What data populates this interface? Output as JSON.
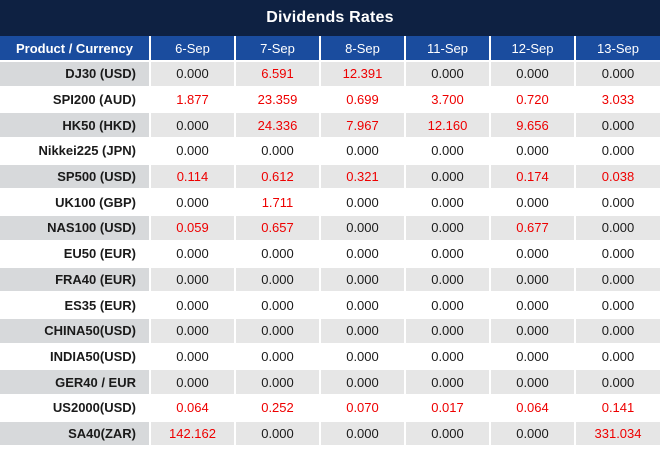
{
  "title": "Dividends Rates",
  "colors": {
    "title_bg": "#0E2142",
    "header_bg": "#1A4C9E",
    "stripe_grey": "#E6E6E6",
    "stripe_grey_first_col": "#D7D9DB",
    "value_black": "#1A1A1A",
    "value_red": "#EE0000"
  },
  "table": {
    "product_header": "Product / Currency",
    "date_headers": [
      "6-Sep",
      "7-Sep",
      "8-Sep",
      "11-Sep",
      "12-Sep",
      "13-Sep"
    ],
    "rows": [
      {
        "product": "DJ30 (USD)",
        "values": [
          "0.000",
          "6.591",
          "12.391",
          "0.000",
          "0.000",
          "0.000"
        ],
        "red": [
          false,
          true,
          true,
          false,
          false,
          false
        ]
      },
      {
        "product": "SPI200 (AUD)",
        "values": [
          "1.877",
          "23.359",
          "0.699",
          "3.700",
          "0.720",
          "3.033"
        ],
        "red": [
          true,
          true,
          true,
          true,
          true,
          true
        ]
      },
      {
        "product": "HK50 (HKD)",
        "values": [
          "0.000",
          "24.336",
          "7.967",
          "12.160",
          "9.656",
          "0.000"
        ],
        "red": [
          false,
          true,
          true,
          true,
          true,
          false
        ]
      },
      {
        "product": "Nikkei225 (JPN)",
        "values": [
          "0.000",
          "0.000",
          "0.000",
          "0.000",
          "0.000",
          "0.000"
        ],
        "red": [
          false,
          false,
          false,
          false,
          false,
          false
        ]
      },
      {
        "product": "SP500 (USD)",
        "values": [
          "0.114",
          "0.612",
          "0.321",
          "0.000",
          "0.174",
          "0.038"
        ],
        "red": [
          true,
          true,
          true,
          false,
          true,
          true
        ]
      },
      {
        "product": "UK100 (GBP)",
        "values": [
          "0.000",
          "1.711",
          "0.000",
          "0.000",
          "0.000",
          "0.000"
        ],
        "red": [
          false,
          true,
          false,
          false,
          false,
          false
        ]
      },
      {
        "product": "NAS100 (USD)",
        "values": [
          "0.059",
          "0.657",
          "0.000",
          "0.000",
          "0.677",
          "0.000"
        ],
        "red": [
          true,
          true,
          false,
          false,
          true,
          false
        ]
      },
      {
        "product": "EU50 (EUR)",
        "values": [
          "0.000",
          "0.000",
          "0.000",
          "0.000",
          "0.000",
          "0.000"
        ],
        "red": [
          false,
          false,
          false,
          false,
          false,
          false
        ]
      },
      {
        "product": "FRA40 (EUR)",
        "values": [
          "0.000",
          "0.000",
          "0.000",
          "0.000",
          "0.000",
          "0.000"
        ],
        "red": [
          false,
          false,
          false,
          false,
          false,
          false
        ]
      },
      {
        "product": "ES35 (EUR)",
        "values": [
          "0.000",
          "0.000",
          "0.000",
          "0.000",
          "0.000",
          "0.000"
        ],
        "red": [
          false,
          false,
          false,
          false,
          false,
          false
        ]
      },
      {
        "product": "CHINA50(USD)",
        "values": [
          "0.000",
          "0.000",
          "0.000",
          "0.000",
          "0.000",
          "0.000"
        ],
        "red": [
          false,
          false,
          false,
          false,
          false,
          false
        ]
      },
      {
        "product": "INDIA50(USD)",
        "values": [
          "0.000",
          "0.000",
          "0.000",
          "0.000",
          "0.000",
          "0.000"
        ],
        "red": [
          false,
          false,
          false,
          false,
          false,
          false
        ]
      },
      {
        "product": "GER40 / EUR",
        "values": [
          "0.000",
          "0.000",
          "0.000",
          "0.000",
          "0.000",
          "0.000"
        ],
        "red": [
          false,
          false,
          false,
          false,
          false,
          false
        ]
      },
      {
        "product": "US2000(USD)",
        "values": [
          "0.064",
          "0.252",
          "0.070",
          "0.017",
          "0.064",
          "0.141"
        ],
        "red": [
          true,
          true,
          true,
          true,
          true,
          true
        ]
      },
      {
        "product": "SA40(ZAR)",
        "values": [
          "142.162",
          "0.000",
          "0.000",
          "0.000",
          "0.000",
          "331.034"
        ],
        "red": [
          true,
          false,
          false,
          false,
          false,
          true
        ]
      }
    ]
  },
  "chart_data": {
    "type": "table",
    "title": "Dividends Rates",
    "columns": [
      "Product / Currency",
      "6-Sep",
      "7-Sep",
      "8-Sep",
      "11-Sep",
      "12-Sep",
      "13-Sep"
    ],
    "rows": [
      {
        "name": "DJ30 (USD)",
        "values": [
          0.0,
          6.591,
          12.391,
          0.0,
          0.0,
          0.0
        ]
      },
      {
        "name": "SPI200 (AUD)",
        "values": [
          1.877,
          23.359,
          0.699,
          3.7,
          0.72,
          3.033
        ]
      },
      {
        "name": "HK50 (HKD)",
        "values": [
          0.0,
          24.336,
          7.967,
          12.16,
          9.656,
          0.0
        ]
      },
      {
        "name": "Nikkei225 (JPN)",
        "values": [
          0.0,
          0.0,
          0.0,
          0.0,
          0.0,
          0.0
        ]
      },
      {
        "name": "SP500 (USD)",
        "values": [
          0.114,
          0.612,
          0.321,
          0.0,
          0.174,
          0.038
        ]
      },
      {
        "name": "UK100 (GBP)",
        "values": [
          0.0,
          1.711,
          0.0,
          0.0,
          0.0,
          0.0
        ]
      },
      {
        "name": "NAS100 (USD)",
        "values": [
          0.059,
          0.657,
          0.0,
          0.0,
          0.677,
          0.0
        ]
      },
      {
        "name": "EU50 (EUR)",
        "values": [
          0.0,
          0.0,
          0.0,
          0.0,
          0.0,
          0.0
        ]
      },
      {
        "name": "FRA40 (EUR)",
        "values": [
          0.0,
          0.0,
          0.0,
          0.0,
          0.0,
          0.0
        ]
      },
      {
        "name": "ES35 (EUR)",
        "values": [
          0.0,
          0.0,
          0.0,
          0.0,
          0.0,
          0.0
        ]
      },
      {
        "name": "CHINA50(USD)",
        "values": [
          0.0,
          0.0,
          0.0,
          0.0,
          0.0,
          0.0
        ]
      },
      {
        "name": "INDIA50(USD)",
        "values": [
          0.0,
          0.0,
          0.0,
          0.0,
          0.0,
          0.0
        ]
      },
      {
        "name": "GER40 / EUR",
        "values": [
          0.0,
          0.0,
          0.0,
          0.0,
          0.0,
          0.0
        ]
      },
      {
        "name": "US2000(USD)",
        "values": [
          0.064,
          0.252,
          0.07,
          0.017,
          0.064,
          0.141
        ]
      },
      {
        "name": "SA40(ZAR)",
        "values": [
          142.162,
          0.0,
          0.0,
          0.0,
          0.0,
          331.034
        ]
      }
    ]
  }
}
